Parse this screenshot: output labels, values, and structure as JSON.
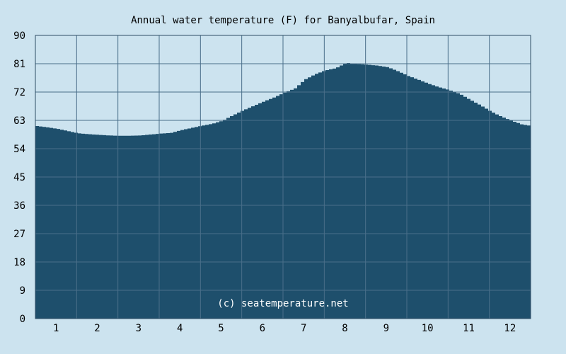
{
  "chart_data": {
    "type": "area",
    "title": "Annual water temperature (F) for Banyalbufar, Spain",
    "xlabel": "",
    "ylabel": "",
    "x_ticks": [
      "1",
      "2",
      "3",
      "4",
      "5",
      "6",
      "7",
      "8",
      "9",
      "10",
      "11",
      "12"
    ],
    "y_ticks": [
      "0",
      "9",
      "18",
      "27",
      "36",
      "45",
      "54",
      "63",
      "72",
      "81",
      "90"
    ],
    "xlim": [
      0.5,
      12.5
    ],
    "ylim": [
      0,
      90
    ],
    "grid": true,
    "watermark": "(c) seatemperature.net",
    "colors": {
      "background": "#cce3ef",
      "plot_background": "#cce3ef",
      "area_fill": "#1e4f6c",
      "grid": "#4a6f8a",
      "axis": "#2e4e66"
    },
    "series": [
      {
        "x": [
          0.5,
          0.75,
          1.0,
          1.25,
          1.5,
          1.75,
          2.0,
          2.25,
          2.5,
          2.75,
          3.0,
          3.25,
          3.5,
          3.75,
          4.0,
          4.25,
          4.5,
          4.75,
          5.0,
          5.25,
          5.5,
          5.75,
          6.0,
          6.25,
          6.5,
          6.75,
          7.0,
          7.25,
          7.5,
          7.75,
          8.0,
          8.25,
          8.5,
          8.75,
          9.0,
          9.25,
          9.5,
          9.75,
          10.0,
          10.25,
          10.5,
          10.75,
          11.0,
          11.25,
          11.5,
          11.75,
          12.0,
          12.25,
          12.5
        ],
        "values": [
          61.2,
          60.8,
          60.3,
          59.6,
          58.9,
          58.6,
          58.4,
          58.2,
          58.1,
          58.1,
          58.2,
          58.5,
          58.8,
          59.0,
          59.9,
          60.6,
          61.3,
          61.9,
          62.9,
          64.6,
          66.2,
          67.6,
          69.0,
          70.3,
          71.8,
          73.1,
          76.0,
          77.7,
          78.9,
          79.6,
          81.3,
          80.9,
          80.7,
          80.4,
          79.9,
          78.6,
          77.1,
          75.9,
          74.6,
          73.5,
          72.6,
          71.4,
          69.5,
          67.8,
          65.8,
          64.2,
          62.9,
          61.7,
          61.2
        ]
      }
    ]
  }
}
